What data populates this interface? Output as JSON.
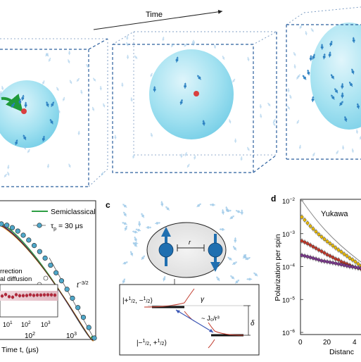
{
  "top": {
    "time_label": "Time"
  },
  "panel_b": {
    "legend_semiclassical": "Semiclassical",
    "legend_tau": "τ",
    "legend_tau_sub": "p",
    "legend_tau_val": " = 30 μs",
    "label_rrection": "rrection",
    "label_diffusion": "al diffusion",
    "label_t32": "t",
    "label_t32_exp": "−3/2",
    "xlabel": "Time t, (μs)",
    "tick_10_1": "10",
    "tick_10_1_exp": "1",
    "tick_10_2": "10",
    "tick_10_2_exp": "2",
    "tick_10_3": "10",
    "tick_10_3_exp": "3",
    "inset_tick_1": "1",
    "inset_tick_2": "2",
    "inset_tick_3": "3"
  },
  "panel_c": {
    "label": "c",
    "r_label": "r",
    "ket_1_pre": "|+",
    "ket_1_a_num": "1",
    "ket_1_a_den": "2",
    "ket_1_mid": ", −",
    "ket_1_b_num": "1",
    "ket_1_b_den": "2",
    "ket_1_post": "⟩",
    "ket_2_pre": "|−",
    "ket_2_a_num": "1",
    "ket_2_a_den": "2",
    "ket_2_mid": ", +",
    "ket_2_b_num": "1",
    "ket_2_b_den": "2",
    "ket_2_post": "⟩",
    "gamma": "γ",
    "coupling": "~ J₀/r³",
    "delta": "δ"
  },
  "panel_d": {
    "label": "d",
    "ylabel": "Polarization per spin",
    "xlabel": "Distanc",
    "yukawa": "Yukawa",
    "yticks": [
      {
        "base": "10",
        "exp": "−2"
      },
      {
        "base": "10",
        "exp": "−3"
      },
      {
        "base": "10",
        "exp": "−4"
      },
      {
        "base": "10",
        "exp": "−5"
      },
      {
        "base": "10",
        "exp": "−6"
      }
    ],
    "xtick_0": "0",
    "xtick_20": "20",
    "xtick_40": "4"
  },
  "chart_data": {
    "type": "scatter",
    "ylabel": "Polarization per spin",
    "xlabel": "Distanc",
    "ylim": [
      1e-06,
      0.01
    ],
    "yscale": "log",
    "xlim": [
      0,
      45
    ],
    "series": [
      {
        "x": [
          1,
          3,
          5,
          7,
          9,
          11,
          13,
          15,
          17,
          19,
          21,
          23,
          25,
          27,
          29,
          31,
          33,
          35,
          37,
          39,
          41,
          43
        ],
        "y": [
          0.0032,
          0.0026,
          0.0021,
          0.0017,
          0.0014,
          0.00115,
          0.00095,
          0.0008,
          0.00068,
          0.00058,
          0.0005,
          0.00043,
          0.00037,
          0.00032,
          0.00028,
          0.00024,
          0.00021,
          0.00018,
          0.00016,
          0.00014,
          0.00012,
          0.000105
        ],
        "color": "#e6b800"
      },
      {
        "x": [
          1,
          3,
          5,
          7,
          9,
          11,
          13,
          15,
          17,
          19,
          21,
          23,
          25,
          27,
          29,
          31,
          33,
          35,
          37,
          39,
          41,
          43
        ],
        "y": [
          0.0006,
          0.00055,
          0.0005,
          0.00045,
          0.0004,
          0.00036,
          0.00032,
          0.00029,
          0.00026,
          0.00023,
          0.00021,
          0.00019,
          0.00017,
          0.00016,
          0.00014,
          0.00013,
          0.00012,
          0.00011,
          0.0001,
          9.5e-05,
          9e-05,
          8.5e-05
        ],
        "color": "#c0392b"
      },
      {
        "x": [
          1,
          3,
          5,
          7,
          9,
          11,
          13,
          15,
          17,
          19,
          21,
          23,
          25,
          27,
          29,
          31,
          33,
          35,
          37,
          39,
          41,
          43
        ],
        "y": [
          0.00022,
          0.00021,
          0.0002,
          0.00019,
          0.00018,
          0.00017,
          0.00016,
          0.00015,
          0.000145,
          0.00014,
          0.000135,
          0.00013,
          0.000125,
          0.00012,
          0.000115,
          0.00011,
          0.000105,
          0.0001,
          9.8e-05,
          9.5e-05,
          9.2e-05,
          9e-05
        ],
        "color": "#7b3a8c"
      }
    ]
  },
  "colors": {
    "sphere": "#7fd4ea",
    "spin": "#2a7fc1",
    "spin_light": "#9cc8e8",
    "box": "#2b5f9e",
    "semiclassical": "#2e9e44",
    "data_main": "#4fa7c9",
    "inset_band": "#e7c9d1",
    "inset_dots": "#b0273a"
  },
  "icons": {
    "arrow": "time-arrow-icon",
    "spin": "spin-arrow-icon"
  }
}
